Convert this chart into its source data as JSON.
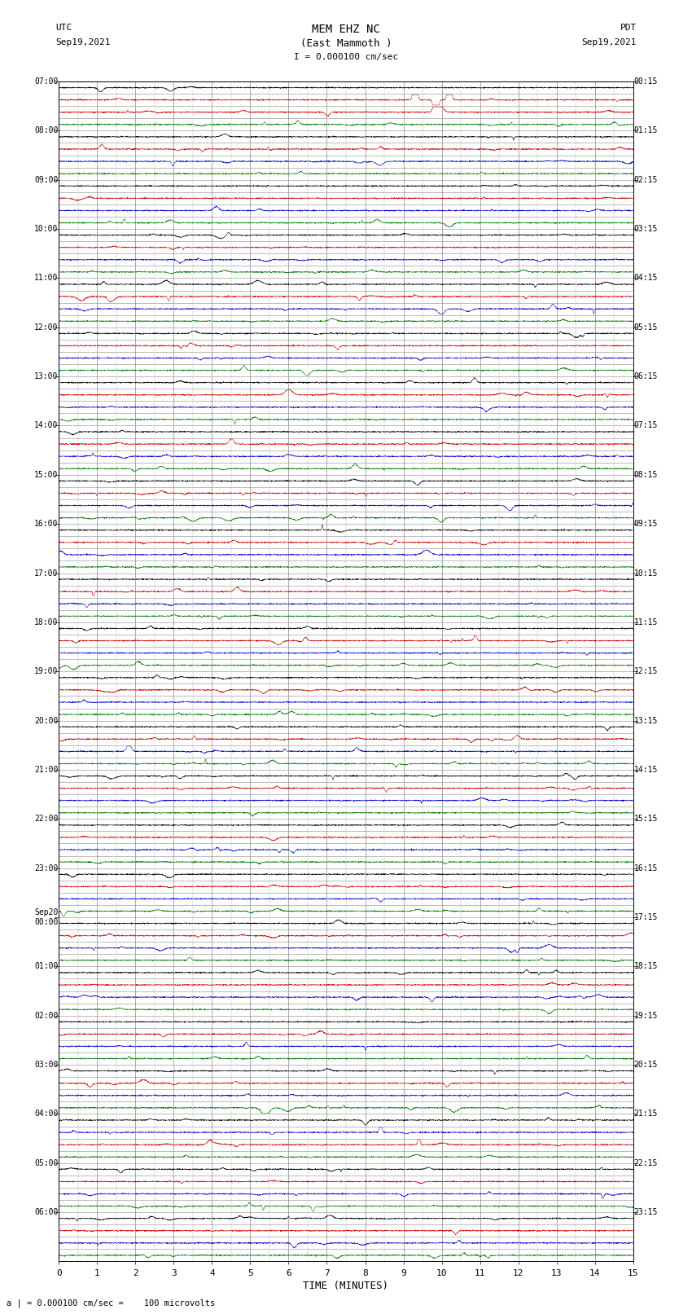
{
  "title_line1": "MEM EHZ NC",
  "title_line2": "(East Mammoth )",
  "scale_text": "I = 0.000100 cm/sec",
  "footer_text": "a | = 0.000100 cm/sec =    100 microvolts",
  "xlabel": "TIME (MINUTES)",
  "x_min": 0,
  "x_max": 15,
  "x_ticks": [
    0,
    1,
    2,
    3,
    4,
    5,
    6,
    7,
    8,
    9,
    10,
    11,
    12,
    13,
    14,
    15
  ],
  "background_color": "#ffffff",
  "grid_major_color": "#888888",
  "grid_minor_color": "#bbbbbb",
  "trace_black": "#000000",
  "trace_red": "#cc0000",
  "trace_blue": "#0000cc",
  "trace_green": "#007700",
  "num_traces": 96,
  "left_times": [
    "07:00",
    "",
    "",
    "",
    "08:00",
    "",
    "",
    "",
    "09:00",
    "",
    "",
    "",
    "10:00",
    "",
    "",
    "",
    "11:00",
    "",
    "",
    "",
    "12:00",
    "",
    "",
    "",
    "13:00",
    "",
    "",
    "",
    "14:00",
    "",
    "",
    "",
    "15:00",
    "",
    "",
    "",
    "16:00",
    "",
    "",
    "",
    "17:00",
    "",
    "",
    "",
    "18:00",
    "",
    "",
    "",
    "19:00",
    "",
    "",
    "",
    "20:00",
    "",
    "",
    "",
    "21:00",
    "",
    "",
    "",
    "22:00",
    "",
    "",
    "",
    "23:00",
    "",
    "",
    "",
    "Sep20\n00:00",
    "",
    "",
    "",
    "01:00",
    "",
    "",
    "",
    "02:00",
    "",
    "",
    "",
    "03:00",
    "",
    "",
    "",
    "04:00",
    "",
    "",
    "",
    "05:00",
    "",
    "",
    "",
    "06:00",
    "",
    "",
    ""
  ],
  "right_times": [
    "00:15",
    "",
    "",
    "",
    "01:15",
    "",
    "",
    "",
    "02:15",
    "",
    "",
    "",
    "03:15",
    "",
    "",
    "",
    "04:15",
    "",
    "",
    "",
    "05:15",
    "",
    "",
    "",
    "06:15",
    "",
    "",
    "",
    "07:15",
    "",
    "",
    "",
    "08:15",
    "",
    "",
    "",
    "09:15",
    "",
    "",
    "",
    "10:15",
    "",
    "",
    "",
    "11:15",
    "",
    "",
    "",
    "12:15",
    "",
    "",
    "",
    "13:15",
    "",
    "",
    "",
    "14:15",
    "",
    "",
    "",
    "15:15",
    "",
    "",
    "",
    "16:15",
    "",
    "",
    "",
    "17:15",
    "",
    "",
    "",
    "18:15",
    "",
    "",
    "",
    "19:15",
    "",
    "",
    "",
    "20:15",
    "",
    "",
    "",
    "21:15",
    "",
    "",
    "",
    "22:15",
    "",
    "",
    "",
    "23:15",
    "",
    "",
    ""
  ],
  "fig_width": 8.5,
  "fig_height": 16.13,
  "dpi": 100
}
